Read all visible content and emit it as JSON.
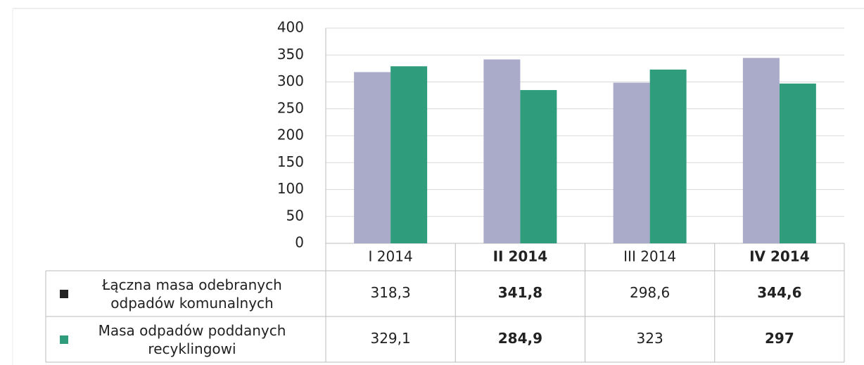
{
  "chart_data": {
    "type": "bar",
    "categories": [
      "I 2014",
      "II 2014",
      "III 2014",
      "IV 2014"
    ],
    "series": [
      {
        "name": "Łączna masa odebranych odpadów komunalnych",
        "color": "#a9abc9",
        "values": [
          318.3,
          341.8,
          298.6,
          344.6
        ],
        "value_labels": [
          "318,3",
          "341,8",
          "298,6",
          "344,6"
        ]
      },
      {
        "name": "Masa odpadów poddanych recyklingowi",
        "color": "#2f9d7c",
        "values": [
          329.1,
          284.9,
          323,
          297
        ],
        "value_labels": [
          "329,1",
          "284,9",
          "323",
          "297"
        ]
      }
    ],
    "ylim": [
      0,
      400
    ],
    "yticks": [
      0,
      50,
      100,
      150,
      200,
      250,
      300,
      350,
      400
    ],
    "grid": true
  }
}
